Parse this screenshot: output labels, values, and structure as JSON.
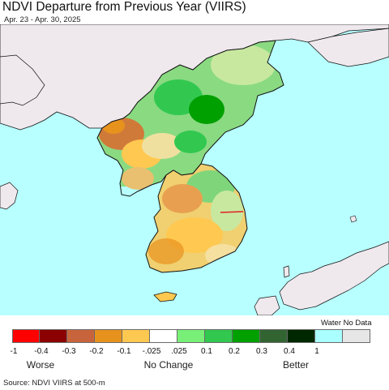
{
  "title": "NDVI Departure from Previous Year (VIIRS)",
  "subtitle": "Apr. 23 - Apr. 30, 2025",
  "legend": {
    "water_no_data_label": "Water No Data",
    "colors": [
      "#ff0000",
      "#8b0000",
      "#c8643c",
      "#e8921e",
      "#ffc850",
      "#ffffff",
      "#78f078",
      "#32c850",
      "#00a000",
      "#326432",
      "#002800",
      "#aaffff",
      "#e6e6e6"
    ],
    "ticks": [
      "-1",
      "-0.4",
      "-0.3",
      "-0.2",
      "-0.1",
      "-.025",
      ".025",
      "0.1",
      "0.2",
      "0.3",
      "0.4",
      "1"
    ],
    "categories": [
      "Worse",
      "No Change",
      "Better"
    ]
  },
  "source": "Source: NDVI VIIRS at 500-m",
  "colors": {
    "water": "#b8ffff",
    "land_foreign": "#efe9ee",
    "border": "#111111"
  }
}
